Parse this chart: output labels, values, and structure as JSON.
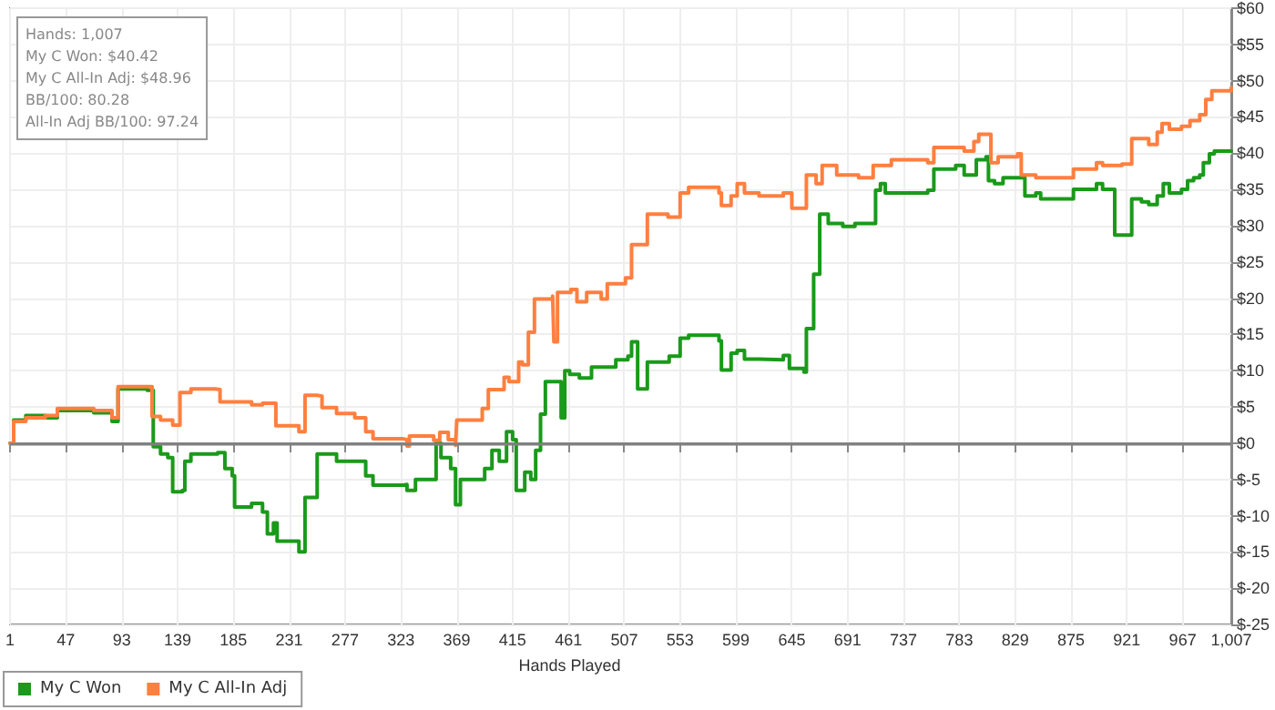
{
  "chart_data": {
    "type": "step",
    "xlabel": "Hands Played",
    "annotations": [
      "Hands: 1,007\nMy C Won: $40.42\nMy C All-In Adj: $48.96\nBB/100: 80.28\nAll-In Adj BB/100: 97.24"
    ],
    "series": [
      {
        "name": "My C Won",
        "color": "#1a9a1a",
        "x": [
          1,
          4,
          14,
          30,
          40,
          70,
          85,
          90,
          114,
          119,
          125,
          131,
          135,
          143,
          145,
          150,
          172,
          178,
          184,
          186,
          200,
          209,
          213,
          218,
          221,
          235,
          239,
          244,
          254,
          270,
          285,
          294,
          300,
          325,
          328,
          335,
          350,
          352,
          356,
          364,
          368,
          372,
          385,
          392,
          398,
          404,
          410,
          415,
          418,
          425,
          430,
          434,
          438,
          442,
          453,
          455,
          458,
          462,
          470,
          480,
          494,
          500,
          510,
          513,
          518,
          526,
          544,
          553,
          560,
          585,
          587,
          595,
          600,
          606,
          618,
          638,
          643,
          655,
          657,
          663,
          668,
          675,
          687,
          697,
          714,
          718,
          722,
          757,
          762,
          780,
          787,
          797,
          805,
          807,
          812,
          819,
          831,
          837,
          846,
          850,
          874,
          877,
          896,
          901,
          907,
          911,
          922,
          925,
          933,
          939,
          946,
          951,
          956,
          966,
          971,
          976,
          981,
          984,
          989,
          993,
          1007
        ],
        "values": [
          0,
          3.2,
          3.8,
          3.5,
          4.5,
          4.2,
          3,
          7.5,
          7.3,
          -0.5,
          -1.5,
          -2,
          -6.7,
          -6.5,
          -2.5,
          -1.5,
          -1.3,
          -3.5,
          -4.5,
          -8.8,
          -8.3,
          -9.5,
          -12.5,
          -11,
          -13.5,
          -13.5,
          -15,
          -7.5,
          -1.5,
          -2.5,
          -2.5,
          -4.5,
          -5.8,
          -5.7,
          -6.5,
          -5,
          -5,
          0,
          -2,
          -3.5,
          -8.5,
          -5,
          -5,
          -3.5,
          -1,
          -2.5,
          1.6,
          0.5,
          -6.5,
          -4,
          -5,
          -1,
          4,
          8.5,
          8.5,
          3.5,
          10,
          9.5,
          9,
          10.5,
          10.5,
          11.5,
          12,
          14,
          7.5,
          11.2,
          12,
          14.5,
          14.9,
          14.1,
          10.1,
          12.4,
          12.8,
          11.6,
          11.5,
          12.1,
          10.3,
          9.8,
          15.8,
          23.3,
          31.6,
          30.3,
          29.9,
          30.3,
          34.9,
          35.8,
          34.5,
          34.9,
          37.8,
          38.3,
          37,
          39.1,
          39.5,
          36.2,
          35.8,
          36.6,
          36.6,
          34.1,
          34.5,
          33.7,
          33.7,
          35,
          35.8,
          35,
          35,
          28.7,
          28.7,
          33.7,
          33.3,
          32.9,
          34.1,
          35.8,
          34.5,
          35,
          36.2,
          36.6,
          37,
          38.7,
          39.9,
          40.3,
          40.4
        ]
      },
      {
        "name": "My C All-In Adj",
        "color": "#ff7f3f",
        "x": [
          1,
          4,
          14,
          30,
          40,
          70,
          85,
          90,
          114,
          118,
          125,
          135,
          141,
          150,
          170,
          174,
          200,
          209,
          220,
          239,
          244,
          254,
          258,
          270,
          285,
          294,
          300,
          325,
          328,
          330,
          345,
          350,
          355,
          362,
          368,
          369,
          390,
          395,
          408,
          412,
          420,
          423,
          428,
          433,
          448,
          449,
          452,
          463,
          468,
          476,
          488,
          493,
          508,
          513,
          518,
          526,
          543,
          553,
          560,
          585,
          587,
          595,
          600,
          606,
          618,
          638,
          645,
          655,
          657,
          665,
          670,
          682,
          700,
          712,
          727,
          757,
          762,
          787,
          795,
          799,
          806,
          809,
          815,
          831,
          834,
          846,
          874,
          877,
          896,
          901,
          917,
          925,
          939,
          946,
          950,
          956,
          966,
          973,
          981,
          986,
          991,
          1007
        ],
        "values": [
          0,
          3,
          3.5,
          3.8,
          4.8,
          4.5,
          3.5,
          7.8,
          7.8,
          3.7,
          3.2,
          2.5,
          7,
          7.5,
          7.4,
          5.7,
          5.3,
          5.5,
          2.4,
          1.6,
          6.6,
          6.5,
          4.9,
          4.1,
          3.5,
          1.6,
          0.6,
          0.5,
          -0.4,
          1,
          1,
          0.4,
          1.5,
          0.5,
          -0.3,
          3.2,
          4.8,
          7.4,
          9.1,
          8.5,
          11.2,
          10.8,
          15.3,
          19.9,
          20.3,
          14,
          20.8,
          21.2,
          19.5,
          20.8,
          19.9,
          22,
          22.8,
          27.4,
          27.4,
          31.6,
          31.2,
          34.5,
          35.3,
          34.5,
          32.8,
          34.1,
          35.8,
          34.5,
          34.1,
          34.5,
          32.4,
          32.4,
          37,
          35.8,
          38.3,
          37,
          36.6,
          38.3,
          39.1,
          38.7,
          40.8,
          40.3,
          41.6,
          42.6,
          42.6,
          38.7,
          39.5,
          39.9,
          37,
          36.6,
          36.6,
          37.8,
          38.7,
          38.3,
          38.5,
          42,
          41.2,
          42.9,
          44.1,
          43.3,
          43.7,
          44.5,
          45.3,
          47.4,
          48.6,
          49
        ]
      }
    ],
    "xlim": [
      1,
      1007
    ],
    "xticks": [
      1,
      47,
      93,
      139,
      185,
      231,
      277,
      323,
      369,
      415,
      461,
      507,
      553,
      599,
      645,
      691,
      737,
      783,
      829,
      875,
      921,
      967,
      {
        "value": 1007,
        "label": "1,007"
      }
    ],
    "ylim": [
      -25,
      60
    ],
    "yticks": [
      {
        "value": -25,
        "label": "$-25"
      },
      {
        "value": -20,
        "label": "$-20"
      },
      {
        "value": -15,
        "label": "$-15"
      },
      {
        "value": -10,
        "label": "$-10"
      },
      {
        "value": -5,
        "label": "$-5"
      },
      {
        "value": 0,
        "label": "$0"
      },
      {
        "value": 5,
        "label": "$5"
      },
      {
        "value": 10,
        "label": "$10"
      },
      {
        "value": 15,
        "label": "$15"
      },
      {
        "value": 20,
        "label": "$20"
      },
      {
        "value": 25,
        "label": "$25"
      },
      {
        "value": 30,
        "label": "$30"
      },
      {
        "value": 35,
        "label": "$35"
      },
      {
        "value": 40,
        "label": "$40"
      },
      {
        "value": 45,
        "label": "$45"
      },
      {
        "value": 50,
        "label": "$50"
      },
      {
        "value": 55,
        "label": "$55"
      },
      {
        "value": 60,
        "label": "$60"
      }
    ],
    "ref_lines": [
      {
        "axis": "y",
        "value": 0,
        "color": "#808080"
      }
    ],
    "grid": true,
    "legend": "bottom left",
    "marker": "none",
    "line_style": "solid"
  }
}
